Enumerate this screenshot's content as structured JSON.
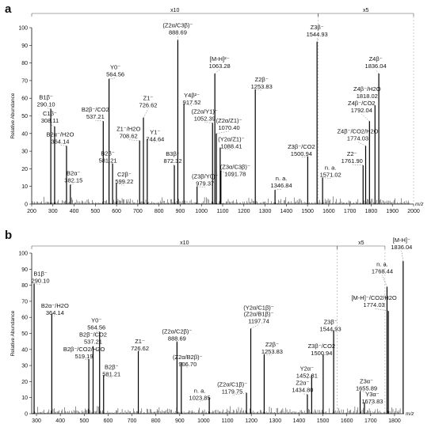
{
  "chart_data": [
    {
      "type": "bar",
      "panel": "a",
      "xlabel": "m/z",
      "ylabel": "Relative Abundance",
      "xlim": [
        200,
        2000
      ],
      "ylim": [
        0,
        100
      ],
      "xticks": [
        200,
        300,
        400,
        500,
        600,
        700,
        800,
        900,
        1000,
        1100,
        1200,
        1300,
        1400,
        1500,
        1600,
        1700,
        1800,
        1900,
        2000
      ],
      "yticks": [
        0,
        10,
        20,
        30,
        40,
        50,
        60,
        70,
        80,
        90,
        100
      ],
      "zoom_regions": [
        {
          "label": "x10",
          "x": [
            200,
            1550
          ]
        },
        {
          "label": "x5",
          "x": [
            1550,
            2000
          ]
        }
      ],
      "peaks": [
        {
          "ion": "B1β⁻",
          "mz": "290.10",
          "x": 290.1,
          "y": 54
        },
        {
          "ion": "C1β⁻",
          "mz": "308.11",
          "x": 308.11,
          "y": 44
        },
        {
          "ion": "B2α⁻/H2O",
          "mz": "364.14",
          "x": 364.14,
          "y": 33
        },
        {
          "ion": "B2α⁻",
          "mz": "382.15",
          "x": 382.15,
          "y": 11
        },
        {
          "ion": "B2β⁻/CO2",
          "mz": "537.21",
          "x": 537.21,
          "y": 47
        },
        {
          "ion": "Y0⁻",
          "mz": "564.56",
          "x": 564.56,
          "y": 71
        },
        {
          "ion": "B2β⁻",
          "mz": "581.21",
          "x": 581.21,
          "y": 23
        },
        {
          "ion": "C2β⁻",
          "mz": "599.22",
          "x": 599.22,
          "y": 12
        },
        {
          "ion": "Z1⁻",
          "mz": "726.62",
          "x": 726.62,
          "y": 49
        },
        {
          "ion": "Z1⁻/H2O",
          "mz": "708.62",
          "x": 708.62,
          "y": 36
        },
        {
          "ion": "Y1⁻",
          "mz": "744.64",
          "x": 744.64,
          "y": 37
        },
        {
          "ion": "B3β⁻",
          "mz": "872.32",
          "x": 872.32,
          "y": 22
        },
        {
          "ion": "(Z2α/C3β)⁻",
          "mz": "888.69",
          "x": 888.69,
          "y": 93
        },
        {
          "ion": "Y4β²⁻",
          "mz": "917.52",
          "x": 917.52,
          "y": 57
        },
        {
          "ion": "(Z3β/Y0)⁻",
          "mz": "979.37",
          "x": 979.37,
          "y": 10
        },
        {
          "ion": "(Z2α/Y1)⁻",
          "mz": "1052.39",
          "x": 1052.39,
          "y": 46
        },
        {
          "ion": "[M-H]²⁻",
          "mz": "1063.28",
          "x": 1063.28,
          "y": 74
        },
        {
          "ion": "(Z2α/Z1)⁻",
          "mz": "1070.40",
          "x": 1070.4,
          "y": 40
        },
        {
          "ion": "(Y2α/Z1)⁻",
          "mz": "1088.41",
          "x": 1088.41,
          "y": 32
        },
        {
          "ion": "(Z3α/C3β)⁻",
          "mz": "1091.78",
          "x": 1091.78,
          "y": 19
        },
        {
          "ion": "Z2β⁻",
          "mz": "1253.83",
          "x": 1253.83,
          "y": 65
        },
        {
          "ion": "n. a.",
          "mz": "1346.84",
          "x": 1346.84,
          "y": 8
        },
        {
          "ion": "Z3β⁻/CO2",
          "mz": "1500.94",
          "x": 1500.94,
          "y": 27
        },
        {
          "ion": "Z3β⁻",
          "mz": "1544.93",
          "x": 1544.93,
          "y": 92
        },
        {
          "ion": "n. a.",
          "mz": "1571.02",
          "x": 1571.02,
          "y": 15
        },
        {
          "ion": "Z2⁻",
          "mz": "1761.90",
          "x": 1761.9,
          "y": 22
        },
        {
          "ion": "Z4β⁻/CO2/H2O",
          "mz": "1774.03",
          "x": 1774.03,
          "y": 33
        },
        {
          "ion": "Z4β⁻/CO2",
          "mz": "1792.04",
          "x": 1792.04,
          "y": 47
        },
        {
          "ion": "Z4β⁻/H2O",
          "mz": "1818.02",
          "x": 1818.02,
          "y": 56
        },
        {
          "ion": "Z4β⁻",
          "mz": "1836.04",
          "x": 1836.04,
          "y": 74
        }
      ]
    },
    {
      "type": "bar",
      "panel": "b",
      "xlabel": "m/z",
      "ylabel": "Relative Abundance",
      "xlim": [
        280,
        1840
      ],
      "ylim": [
        0,
        100
      ],
      "xticks": [
        300,
        400,
        500,
        600,
        700,
        800,
        900,
        1000,
        1100,
        1200,
        1300,
        1400,
        1500,
        1600,
        1700,
        1800
      ],
      "yticks": [
        0,
        10,
        20,
        30,
        40,
        50,
        60,
        70,
        80,
        90,
        100
      ],
      "zoom_regions": [
        {
          "label": "x10",
          "x": [
            280,
            1560
          ]
        },
        {
          "label": "x5",
          "x": [
            1560,
            1760
          ]
        }
      ],
      "peaks": [
        {
          "ion": "B1β⁻",
          "mz": "290.10",
          "x": 290.1,
          "y": 81
        },
        {
          "ion": "B2α⁻/H2O",
          "mz": "364.14",
          "x": 364.14,
          "y": 62
        },
        {
          "ion": "B2β⁻/CO2",
          "mz": "537.21",
          "x": 537.21,
          "y": 42
        },
        {
          "ion": "B2β⁻/CO2/H2O",
          "mz": "519.19",
          "x": 519.19,
          "y": 34
        },
        {
          "ion": "Y0⁻",
          "mz": "564.56",
          "x": 564.56,
          "y": 51
        },
        {
          "ion": "B2β⁻",
          "mz": "581.21",
          "x": 581.21,
          "y": 24
        },
        {
          "ion": "Z1⁻",
          "mz": "726.62",
          "x": 726.62,
          "y": 39
        },
        {
          "ion": "(Z2α/C2β)⁻",
          "mz": "888.69",
          "x": 888.69,
          "y": 45
        },
        {
          "ion": "(Z2α/B2β)⁻",
          "mz": "906.70",
          "x": 906.7,
          "y": 32
        },
        {
          "ion": "n. a.",
          "mz": "1023.85",
          "x": 1023.85,
          "y": 10
        },
        {
          "ion": "(Z2α/C1β)⁻",
          "mz": "1179.75",
          "x": 1179.75,
          "y": 13
        },
        {
          "ion": "(Y2α/C1β)⁻\n(Z2α/B1β)⁻",
          "mz": "1197.74",
          "x": 1197.74,
          "y": 53
        },
        {
          "ion": "Z2β⁻",
          "mz": "1253.83",
          "x": 1253.83,
          "y": 37
        },
        {
          "ion": "Z2α⁻",
          "mz": "1434.80",
          "x": 1434.8,
          "y": 12
        },
        {
          "ion": "Y2α⁻",
          "mz": "1452.81",
          "x": 1452.81,
          "y": 24
        },
        {
          "ion": "Z3β⁻/CO2",
          "mz": "1500.94",
          "x": 1500.94,
          "y": 37
        },
        {
          "ion": "Z3β⁻",
          "mz": "1544.93",
          "x": 1544.93,
          "y": 52
        },
        {
          "ion": "Z3α⁻",
          "mz": "1655.89",
          "x": 1655.89,
          "y": 14
        },
        {
          "ion": "Y3α⁻",
          "mz": "1673.83",
          "x": 1673.83,
          "y": 7
        },
        {
          "ion": "[M-H]⁻/CO2/H2O",
          "mz": "1774.03",
          "x": 1774.03,
          "y": 64
        },
        {
          "ion": "n. a.",
          "mz": "1768.44",
          "x": 1768.44,
          "y": 79
        },
        {
          "ion": "[M-H]⁻",
          "mz": "1836.04",
          "x": 1836.04,
          "y": 95
        }
      ]
    }
  ]
}
